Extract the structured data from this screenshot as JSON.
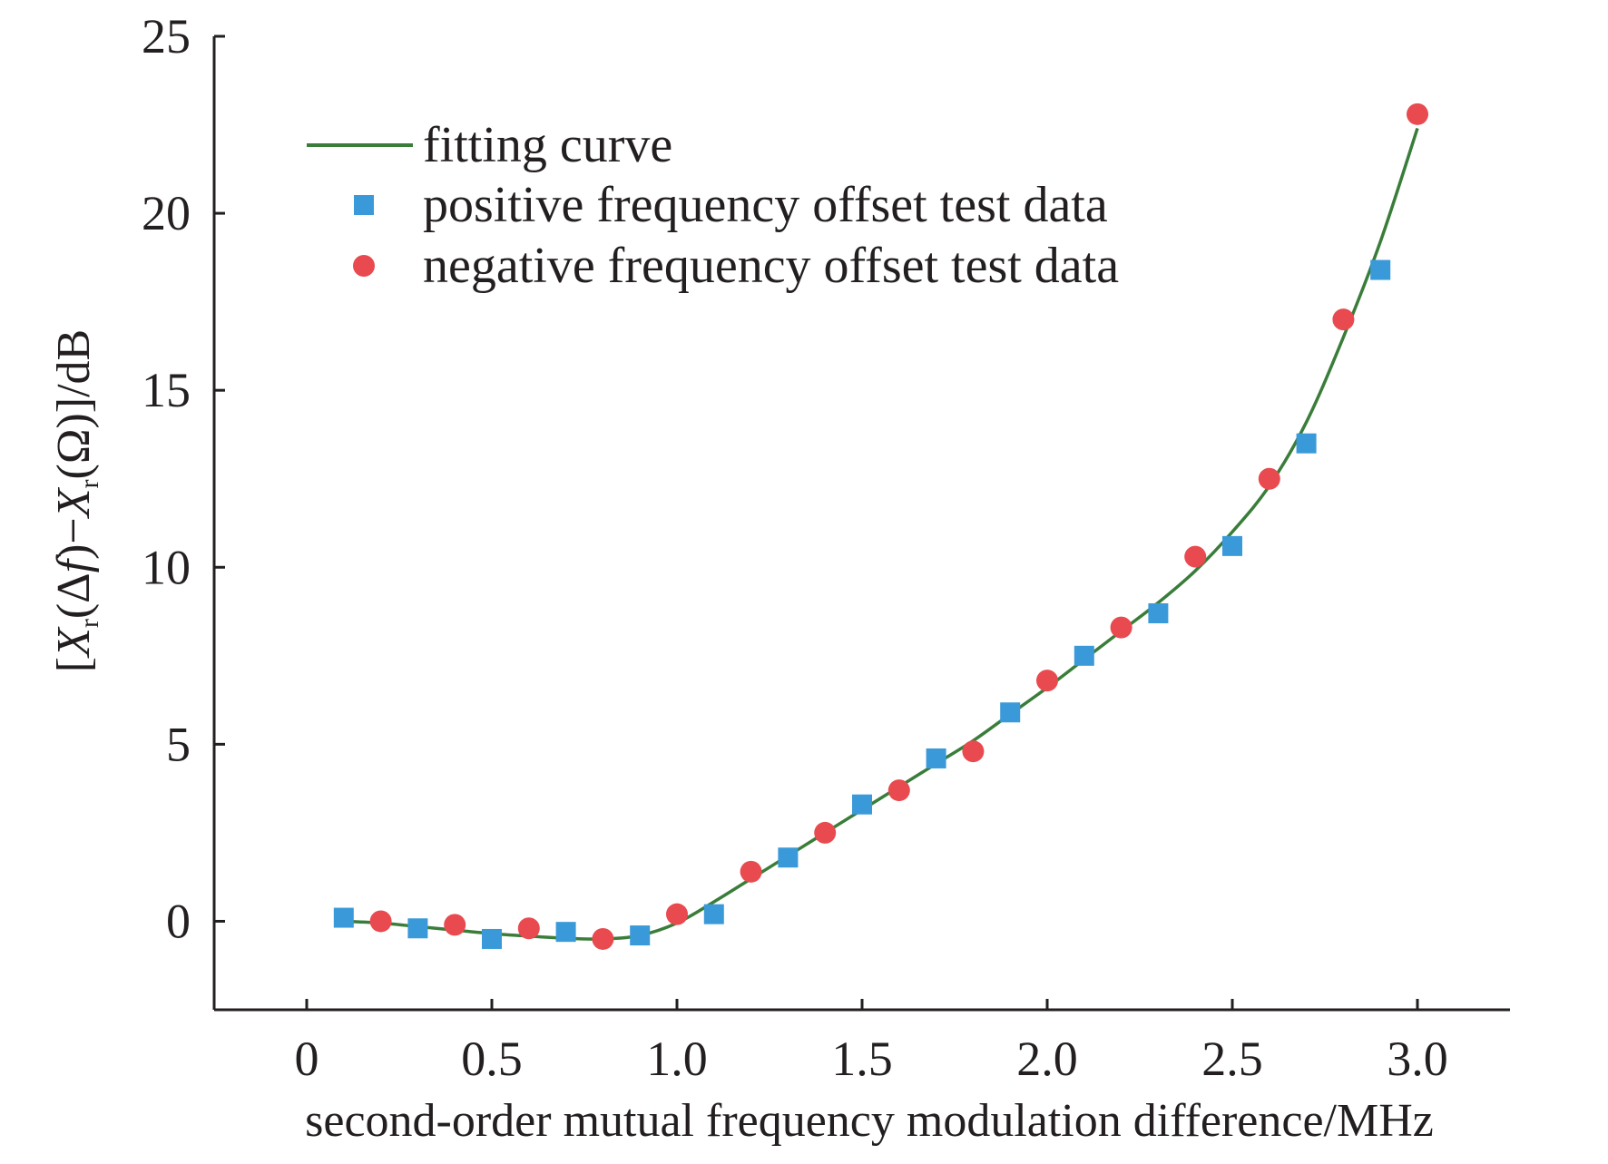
{
  "chart_data": {
    "type": "scatter",
    "title": "",
    "xlabel": "second-order mutual frequency modulation difference/MHz",
    "ylabel": "[X(Δf)−X(Ω)]/dB",
    "ylabel_parts": {
      "open": "[",
      "x1": "X",
      "sub1": "r",
      "mid1": "(Δ",
      "f": "f",
      "mid2": ")−",
      "x2": "X",
      "sub2": "r",
      "tail": "(Ω)]/dB"
    },
    "xlim": [
      -0.25,
      3.25
    ],
    "ylim": [
      -2.5,
      25
    ],
    "xticks": [
      0,
      0.5,
      1.0,
      1.5,
      2.0,
      2.5,
      3.0
    ],
    "xtick_labels": [
      "0",
      "0.5",
      "1.0",
      "1.5",
      "2.0",
      "2.5",
      "3.0"
    ],
    "yticks": [
      0,
      5,
      10,
      15,
      20,
      25
    ],
    "ytick_labels": [
      "0",
      "5",
      "10",
      "15",
      "20",
      "25"
    ],
    "grid": false,
    "legend_position": "top-left",
    "series": [
      {
        "name": "fitting curve",
        "kind": "line",
        "color": "#3a7d3a",
        "x": [
          0.1,
          0.2,
          0.3,
          0.4,
          0.5,
          0.6,
          0.7,
          0.8,
          0.9,
          1.0,
          1.1,
          1.2,
          1.3,
          1.4,
          1.5,
          1.6,
          1.7,
          1.8,
          1.9,
          2.0,
          2.1,
          2.2,
          2.3,
          2.4,
          2.5,
          2.6,
          2.7,
          2.8,
          2.9,
          3.0
        ],
        "y": [
          0.0,
          -0.05,
          -0.15,
          -0.25,
          -0.35,
          -0.42,
          -0.48,
          -0.5,
          -0.4,
          -0.05,
          0.55,
          1.2,
          1.85,
          2.5,
          3.15,
          3.8,
          4.45,
          5.1,
          5.85,
          6.6,
          7.4,
          8.2,
          9.0,
          9.9,
          11.0,
          12.3,
          14.1,
          16.5,
          19.2,
          22.4
        ]
      },
      {
        "name": "positive frequency offset test data",
        "kind": "square",
        "color": "#3a9ad9",
        "x": [
          0.1,
          0.3,
          0.5,
          0.7,
          0.9,
          1.1,
          1.3,
          1.5,
          1.7,
          1.9,
          2.1,
          2.3,
          2.5,
          2.7,
          2.9
        ],
        "y": [
          0.1,
          -0.2,
          -0.5,
          -0.3,
          -0.4,
          0.2,
          1.8,
          3.3,
          4.6,
          5.9,
          7.5,
          8.7,
          10.6,
          13.5,
          18.4
        ]
      },
      {
        "name": "negative frequency offset test data",
        "kind": "circle",
        "color": "#e84a4f",
        "x": [
          0.2,
          0.4,
          0.6,
          0.8,
          1.0,
          1.2,
          1.4,
          1.6,
          1.8,
          2.0,
          2.2,
          2.4,
          2.6,
          2.8,
          3.0
        ],
        "y": [
          0.0,
          -0.1,
          -0.2,
          -0.5,
          0.2,
          1.4,
          2.5,
          3.7,
          4.8,
          6.8,
          8.3,
          10.3,
          12.5,
          17.0,
          22.8
        ]
      }
    ]
  }
}
